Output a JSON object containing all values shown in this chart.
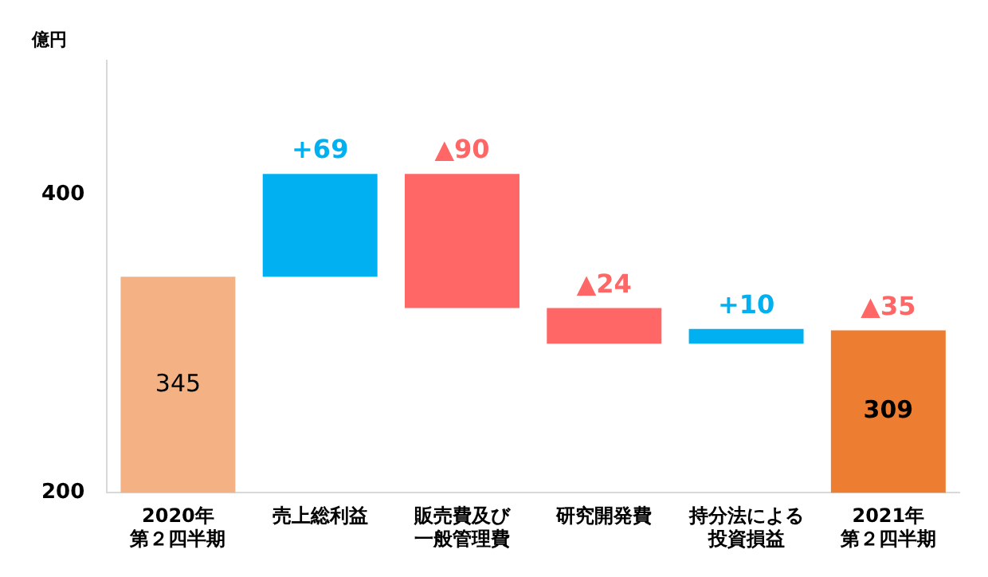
{
  "chart_data": {
    "type": "bar",
    "ylabel": "億円",
    "categories": [
      "2020年第２四半期",
      "売上総利益",
      "販売費及び一般管理費",
      "研究開発費",
      "持分法による投資損益",
      "2021年第２四半期"
    ],
    "base": [
      200,
      345,
      414,
      324,
      300,
      200
    ],
    "values": [
      145,
      69,
      -90,
      -24,
      10,
      109
    ],
    "colors": [
      "#f4b183",
      "#00b0f0",
      "#ff6666",
      "#ff6666",
      "#00b0f0",
      "#ed7d31"
    ],
    "value_labels": [
      "345",
      "+69",
      "▲90",
      "▲24",
      "+10",
      "309"
    ],
    "annotations": [
      {
        "text": "▲35",
        "x": "2021年第２四半期",
        "y": 309
      }
    ],
    "ylim": [
      200,
      490
    ],
    "yticks": [
      200,
      400
    ],
    "grid": false,
    "legend": false
  }
}
